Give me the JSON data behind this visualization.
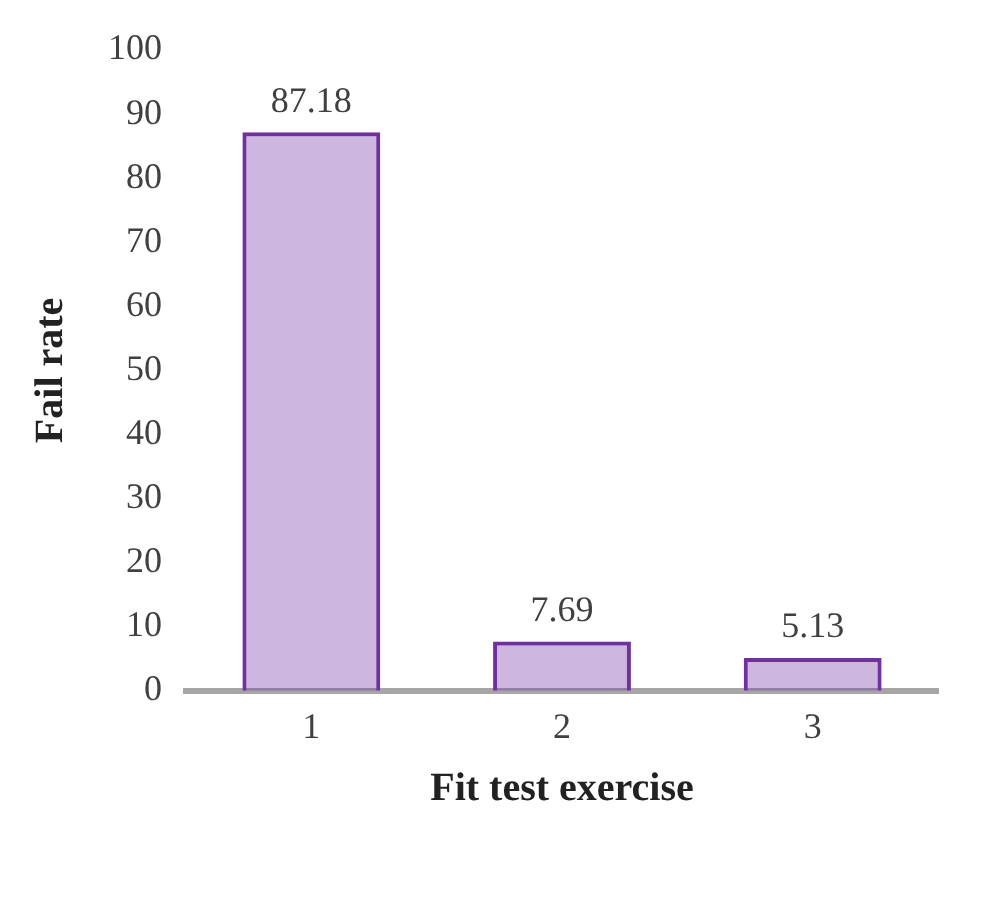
{
  "chart_data": {
    "type": "bar",
    "xlabel": "Fit test exercise",
    "ylabel": "Fail rate",
    "categories": [
      "1",
      "2",
      "3"
    ],
    "values": [
      87.18,
      7.69,
      5.13
    ],
    "color": "#7030a0",
    "ylim": [
      0,
      100
    ],
    "yticks": [
      0,
      10,
      20,
      30,
      40,
      50,
      60,
      70,
      80,
      90,
      100
    ],
    "grid": false,
    "legend": false,
    "data_labels": true
  }
}
